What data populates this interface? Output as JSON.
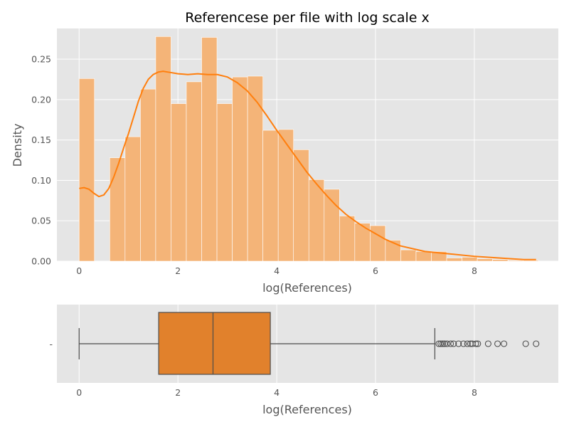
{
  "chart_data": [
    {
      "type": "bar",
      "subtype": "histogram-with-kde",
      "title": "Referencese per file with log scale x",
      "xlabel": "log(References)",
      "ylabel": "Density",
      "xlim": [
        -0.45,
        9.7
      ],
      "ylim": [
        0,
        0.288
      ],
      "xticks": [
        0,
        2,
        4,
        6,
        8
      ],
      "yticks": [
        0.0,
        0.05,
        0.1,
        0.15,
        0.2,
        0.25
      ],
      "ytick_labels": [
        "0.00",
        "0.05",
        "0.10",
        "0.15",
        "0.20",
        "0.25"
      ],
      "grid": true,
      "bar_color": "#f4b478",
      "kde_color": "#ff7f0e",
      "bins": [
        {
          "x0": 0.0,
          "x1": 0.31,
          "density": 0.226
        },
        {
          "x0": 0.31,
          "x1": 0.62,
          "density": 0.0
        },
        {
          "x0": 0.62,
          "x1": 0.93,
          "density": 0.128
        },
        {
          "x0": 0.93,
          "x1": 1.24,
          "density": 0.154
        },
        {
          "x0": 1.24,
          "x1": 1.55,
          "density": 0.213
        },
        {
          "x0": 1.55,
          "x1": 1.86,
          "density": 0.278
        },
        {
          "x0": 1.86,
          "x1": 2.17,
          "density": 0.195
        },
        {
          "x0": 2.17,
          "x1": 2.48,
          "density": 0.222
        },
        {
          "x0": 2.48,
          "x1": 2.79,
          "density": 0.277
        },
        {
          "x0": 2.79,
          "x1": 3.1,
          "density": 0.195
        },
        {
          "x0": 3.1,
          "x1": 3.41,
          "density": 0.228
        },
        {
          "x0": 3.41,
          "x1": 3.72,
          "density": 0.229
        },
        {
          "x0": 3.72,
          "x1": 4.03,
          "density": 0.162
        },
        {
          "x0": 4.03,
          "x1": 4.34,
          "density": 0.163
        },
        {
          "x0": 4.34,
          "x1": 4.65,
          "density": 0.138
        },
        {
          "x0": 4.65,
          "x1": 4.96,
          "density": 0.101
        },
        {
          "x0": 4.96,
          "x1": 5.27,
          "density": 0.089
        },
        {
          "x0": 5.27,
          "x1": 5.58,
          "density": 0.056
        },
        {
          "x0": 5.58,
          "x1": 5.89,
          "density": 0.047
        },
        {
          "x0": 5.89,
          "x1": 6.2,
          "density": 0.044
        },
        {
          "x0": 6.2,
          "x1": 6.51,
          "density": 0.026
        },
        {
          "x0": 6.51,
          "x1": 6.82,
          "density": 0.014
        },
        {
          "x0": 6.82,
          "x1": 7.13,
          "density": 0.012
        },
        {
          "x0": 7.13,
          "x1": 7.44,
          "density": 0.012
        },
        {
          "x0": 7.44,
          "x1": 7.75,
          "density": 0.004
        },
        {
          "x0": 7.75,
          "x1": 8.06,
          "density": 0.005
        },
        {
          "x0": 8.06,
          "x1": 8.37,
          "density": 0.003
        },
        {
          "x0": 8.37,
          "x1": 8.68,
          "density": 0.002
        },
        {
          "x0": 8.68,
          "x1": 8.99,
          "density": 0.001
        },
        {
          "x0": 8.99,
          "x1": 9.3,
          "density": 0.001
        }
      ],
      "kde": {
        "x": [
          0.0,
          0.1,
          0.2,
          0.3,
          0.4,
          0.5,
          0.6,
          0.7,
          0.8,
          0.9,
          1.0,
          1.1,
          1.2,
          1.3,
          1.4,
          1.5,
          1.6,
          1.7,
          1.8,
          2.0,
          2.2,
          2.4,
          2.6,
          2.8,
          3.0,
          3.2,
          3.4,
          3.6,
          3.8,
          4.0,
          4.2,
          4.4,
          4.6,
          4.8,
          5.0,
          5.2,
          5.4,
          5.6,
          5.8,
          6.0,
          6.2,
          6.5,
          7.0,
          7.5,
          8.0,
          8.5,
          9.0,
          9.25
        ],
        "y": [
          0.09,
          0.091,
          0.089,
          0.084,
          0.08,
          0.082,
          0.09,
          0.104,
          0.121,
          0.14,
          0.158,
          0.178,
          0.198,
          0.214,
          0.225,
          0.231,
          0.234,
          0.235,
          0.234,
          0.232,
          0.231,
          0.232,
          0.231,
          0.231,
          0.228,
          0.221,
          0.211,
          0.197,
          0.18,
          0.162,
          0.145,
          0.128,
          0.111,
          0.096,
          0.082,
          0.069,
          0.058,
          0.049,
          0.041,
          0.034,
          0.027,
          0.019,
          0.012,
          0.009,
          0.006,
          0.004,
          0.002,
          0.002
        ]
      }
    },
    {
      "type": "boxplot",
      "xlabel": "log(References)",
      "xlim": [
        -0.45,
        9.7
      ],
      "xticks": [
        0,
        2,
        4,
        6,
        8
      ],
      "ytick_labels": [
        "-"
      ],
      "grid": true,
      "box_color": "#e1812c",
      "whisker_low": 0.0,
      "q1": 1.61,
      "median": 2.71,
      "q3": 3.87,
      "whisker_high": 7.2,
      "outliers": [
        7.28,
        7.32,
        7.36,
        7.4,
        7.45,
        7.52,
        7.58,
        7.68,
        7.78,
        7.86,
        7.92,
        7.96,
        8.03,
        8.07,
        8.28,
        8.47,
        8.6,
        9.04,
        9.25
      ]
    }
  ]
}
